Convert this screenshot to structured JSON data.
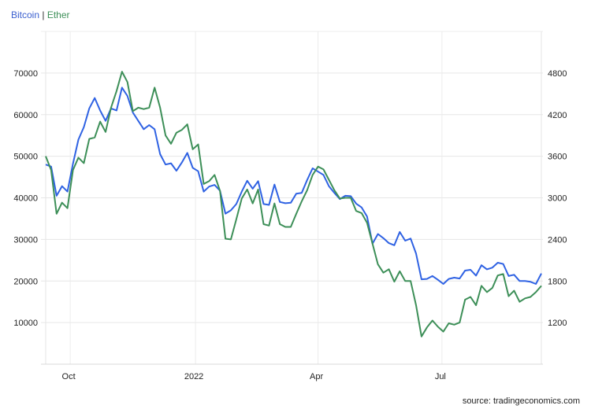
{
  "chart_data": {
    "type": "line",
    "legend": {
      "placement": "top-left",
      "separator": "|"
    },
    "grid": true,
    "x": [
      "2021-09-13",
      "2021-09-17",
      "2021-09-21",
      "2021-09-25",
      "2021-09-29",
      "2021-10-03",
      "2021-10-07",
      "2021-10-11",
      "2021-10-15",
      "2021-10-19",
      "2021-10-23",
      "2021-10-27",
      "2021-10-31",
      "2021-11-04",
      "2021-11-08",
      "2021-11-12",
      "2021-11-16",
      "2021-11-20",
      "2021-11-24",
      "2021-11-28",
      "2021-12-02",
      "2021-12-06",
      "2021-12-10",
      "2021-12-14",
      "2021-12-18",
      "2021-12-22",
      "2021-12-26",
      "2021-12-30",
      "2022-01-03",
      "2022-01-07",
      "2022-01-11",
      "2022-01-15",
      "2022-01-19",
      "2022-01-23",
      "2022-01-27",
      "2022-01-31",
      "2022-02-04",
      "2022-02-08",
      "2022-02-12",
      "2022-02-16",
      "2022-02-20",
      "2022-02-24",
      "2022-02-28",
      "2022-03-04",
      "2022-03-08",
      "2022-03-12",
      "2022-03-16",
      "2022-03-20",
      "2022-03-24",
      "2022-03-28",
      "2022-04-01",
      "2022-04-05",
      "2022-04-09",
      "2022-04-13",
      "2022-04-17",
      "2022-04-21",
      "2022-04-25",
      "2022-04-29",
      "2022-05-03",
      "2022-05-07",
      "2022-05-11",
      "2022-05-15",
      "2022-05-19",
      "2022-05-23",
      "2022-05-27",
      "2022-05-31",
      "2022-06-04",
      "2022-06-08",
      "2022-06-12",
      "2022-06-16",
      "2022-06-20",
      "2022-06-24",
      "2022-06-28",
      "2022-07-02",
      "2022-07-06",
      "2022-07-10",
      "2022-07-14",
      "2022-07-18",
      "2022-07-22",
      "2022-07-26",
      "2022-07-30",
      "2022-08-03",
      "2022-08-07",
      "2022-08-11",
      "2022-08-15",
      "2022-08-19",
      "2022-08-23",
      "2022-08-27",
      "2022-08-31",
      "2022-09-04",
      "2022-09-08",
      "2022-09-12"
    ],
    "xlim": [
      "2021-09-13",
      "2022-09-12"
    ],
    "xticks": [
      {
        "date": "2021-10-01",
        "label": "Oct"
      },
      {
        "date": "2022-01-01",
        "label": "2022"
      },
      {
        "date": "2022-04-01",
        "label": "Apr"
      },
      {
        "date": "2022-07-01",
        "label": "Jul"
      }
    ],
    "y_left": {
      "ylim": [
        0,
        80000
      ],
      "ticks": [
        10000,
        20000,
        30000,
        40000,
        50000,
        60000,
        70000
      ]
    },
    "y_right": {
      "ylim": [
        600,
        5400
      ],
      "ticks": [
        1200,
        1800,
        2400,
        3000,
        3600,
        4200,
        4800
      ]
    },
    "series": [
      {
        "name": "Bitcoin",
        "axis": "left",
        "color": "#2f62e3",
        "values": [
          48000,
          47500,
          40500,
          42800,
          41500,
          48200,
          54000,
          57000,
          61500,
          64000,
          61000,
          58500,
          61500,
          61000,
          66500,
          64500,
          60500,
          58500,
          56500,
          57500,
          56500,
          50500,
          48000,
          48300,
          46500,
          48500,
          50800,
          47200,
          46400,
          41500,
          42700,
          43100,
          41700,
          36200,
          37000,
          38500,
          41500,
          44100,
          42200,
          44000,
          38500,
          38300,
          43200,
          39000,
          38700,
          38800,
          41000,
          41200,
          44300,
          47100,
          46300,
          45500,
          42800,
          41200,
          39700,
          40500,
          40400,
          38600,
          37700,
          35500,
          29000,
          31300,
          30300,
          29100,
          28600,
          31800,
          29700,
          30200,
          26600,
          20400,
          20500,
          21200,
          20300,
          19300,
          20500,
          20800,
          20600,
          22500,
          22700,
          21300,
          23800,
          22800,
          23200,
          24400,
          24100,
          21200,
          21500,
          20000,
          20000,
          19800,
          19300,
          21800
        ]
      },
      {
        "name": "Ether",
        "axis": "right",
        "color": "#3d8f58",
        "values": [
          3600,
          3400,
          2770,
          2930,
          2850,
          3400,
          3580,
          3500,
          3850,
          3870,
          4100,
          3950,
          4300,
          4540,
          4820,
          4670,
          4250,
          4300,
          4280,
          4300,
          4590,
          4300,
          3900,
          3780,
          3940,
          3980,
          4060,
          3700,
          3770,
          3200,
          3240,
          3330,
          3100,
          2410,
          2400,
          2690,
          2990,
          3120,
          2920,
          3120,
          2620,
          2600,
          2920,
          2620,
          2580,
          2580,
          2770,
          2950,
          3110,
          3330,
          3450,
          3410,
          3260,
          3110,
          2990,
          3000,
          3000,
          2810,
          2780,
          2640,
          2340,
          2040,
          1920,
          1970,
          1790,
          1940,
          1800,
          1800,
          1450,
          1000,
          1130,
          1230,
          1140,
          1070,
          1190,
          1170,
          1200,
          1530,
          1570,
          1450,
          1730,
          1640,
          1700,
          1880,
          1900,
          1580,
          1660,
          1500,
          1550,
          1570,
          1640,
          1730
        ]
      }
    ]
  },
  "legend": {
    "bitcoin": "Bitcoin",
    "separator": "|",
    "ether": "Ether"
  },
  "source": "source: tradingeconomics.com"
}
